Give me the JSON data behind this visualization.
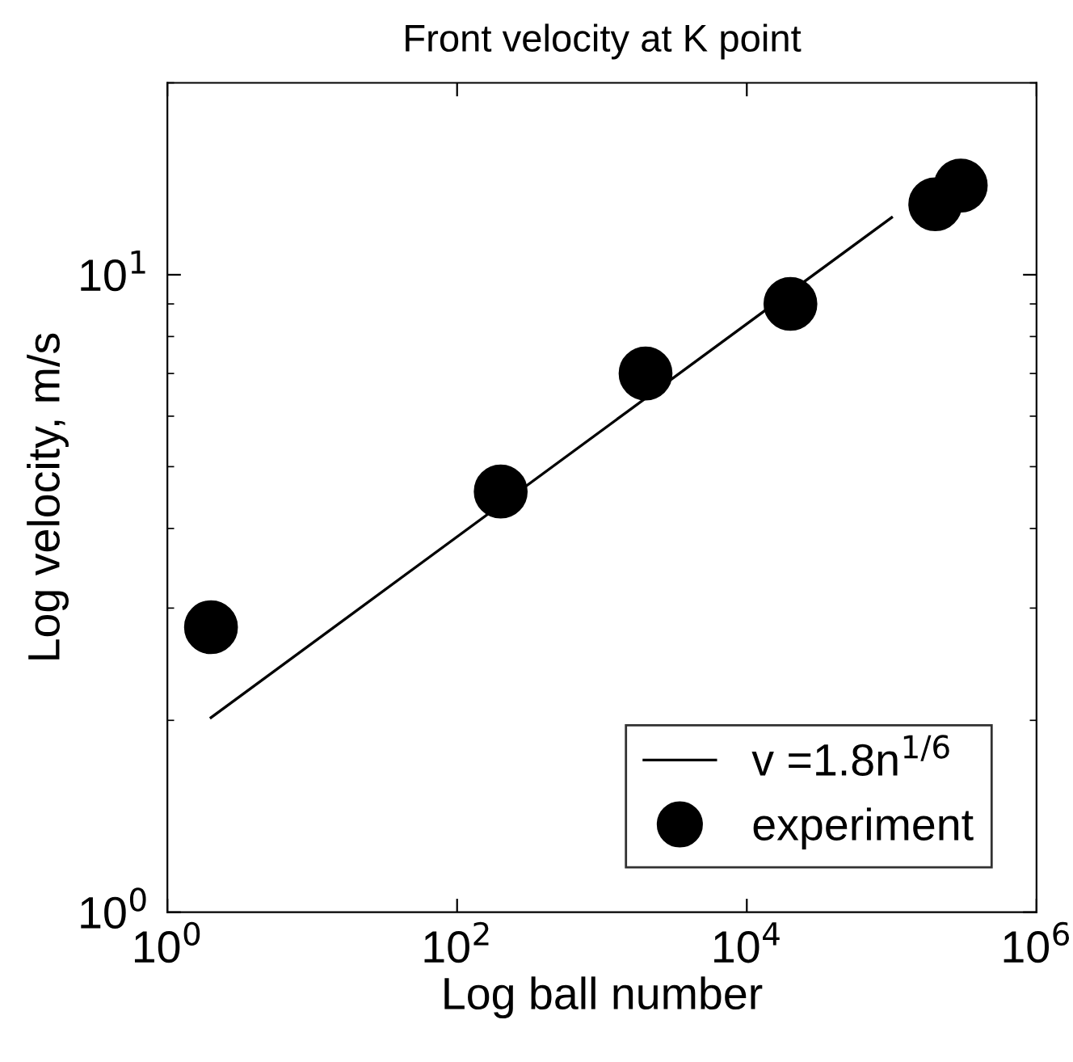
{
  "chart_data": {
    "type": "scatter",
    "title": "Front velocity at K point",
    "xlabel": "Log ball number",
    "ylabel": "Log velocity, m/s",
    "log": "xy",
    "xlim": [
      1,
      1000000
    ],
    "ylim": [
      1,
      20
    ],
    "xticks": [
      {
        "value": 1,
        "label": "10$^{0}$"
      },
      {
        "value": 100,
        "label": "10$^{2}$"
      },
      {
        "value": 10000,
        "label": "10$^{4}$"
      },
      {
        "value": 1000000,
        "label": "10$^{6}$"
      }
    ],
    "yticks": [
      {
        "value": 1,
        "label": "10$^{0}$"
      },
      {
        "value": 10,
        "label": "10$^{1}$"
      }
    ],
    "grid": false,
    "legend": "bottom right",
    "series": [
      {
        "name": "v =1.8n$^{1/6}$",
        "type": "line",
        "color": "#000000",
        "marker": "none",
        "line_style": "solid",
        "x": [
          2,
          100000
        ],
        "values": [
          2.02,
          12.3
        ]
      },
      {
        "name": "experiment",
        "color": "#000000",
        "marker": "circle",
        "x": [
          2,
          200,
          2000,
          20000,
          200000,
          300000
        ],
        "values": [
          2.8,
          4.57,
          7.0,
          9.0,
          12.9,
          13.8
        ]
      }
    ]
  }
}
